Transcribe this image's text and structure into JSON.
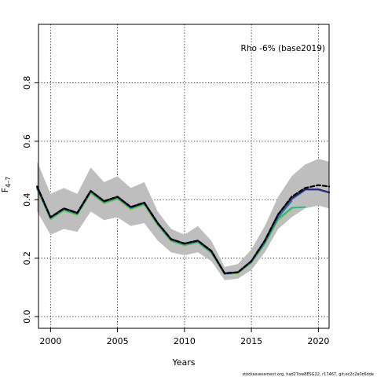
{
  "chart_data": {
    "type": "line",
    "title": "",
    "xlabel": "Years",
    "ylabel_main": "F",
    "ylabel_sub": "4–7",
    "annotation": "Rho -6% (base2019)",
    "footer": "stockassessment.org, had27ow8ESG22, r17467, git:ec2c2a0c6dde",
    "xlim": [
      1999.1,
      2020.8
    ],
    "ylim": [
      -0.04,
      1.0
    ],
    "x_ticks": [
      2000,
      2005,
      2010,
      2015,
      2020
    ],
    "x_tick_labels": [
      "2000",
      "2005",
      "2010",
      "2015",
      "2020"
    ],
    "y_ticks": [
      0.0,
      0.2,
      0.4,
      0.6,
      0.8
    ],
    "y_tick_labels": [
      "0.0",
      "0.2",
      "0.4",
      "0.6",
      "0.8"
    ],
    "grid": true,
    "band": {
      "name": "confidence interval",
      "color": "#bebebe",
      "x": [
        1999,
        2000,
        2001,
        2002,
        2003,
        2004,
        2005,
        2006,
        2007,
        2008,
        2009,
        2010,
        2011,
        2012,
        2013,
        2014,
        2015,
        2016,
        2017,
        2018,
        2019,
        2020,
        2020.8
      ],
      "upper": [
        0.53,
        0.42,
        0.44,
        0.42,
        0.51,
        0.46,
        0.48,
        0.44,
        0.46,
        0.36,
        0.3,
        0.28,
        0.31,
        0.26,
        0.17,
        0.18,
        0.23,
        0.31,
        0.41,
        0.48,
        0.52,
        0.54,
        0.53
      ],
      "lower": [
        0.36,
        0.28,
        0.3,
        0.29,
        0.36,
        0.33,
        0.34,
        0.31,
        0.32,
        0.26,
        0.22,
        0.21,
        0.22,
        0.19,
        0.125,
        0.13,
        0.16,
        0.22,
        0.3,
        0.34,
        0.37,
        0.38,
        0.37
      ]
    },
    "series": [
      {
        "color": "#000000",
        "dashed": true,
        "width": 2.2,
        "x": [
          1999,
          2000,
          2001,
          2002,
          2003,
          2004,
          2005,
          2006,
          2007,
          2008,
          2009,
          2010,
          2011,
          2012,
          2013,
          2014,
          2015,
          2016,
          2017,
          2018,
          2019,
          2020,
          2020.8
        ],
        "values": [
          0.445,
          0.34,
          0.37,
          0.355,
          0.43,
          0.395,
          0.41,
          0.375,
          0.39,
          0.32,
          0.265,
          0.25,
          0.26,
          0.225,
          0.148,
          0.152,
          0.19,
          0.26,
          0.35,
          0.41,
          0.44,
          0.45,
          0.445
        ]
      },
      {
        "color": "#2c2a6e",
        "dashed": false,
        "width": 2.4,
        "x": [
          1999,
          2000,
          2001,
          2002,
          2003,
          2004,
          2005,
          2006,
          2007,
          2008,
          2009,
          2010,
          2011,
          2012,
          2013,
          2014,
          2015,
          2016,
          2017,
          2018,
          2019,
          2020,
          2020.8
        ],
        "values": [
          0.445,
          0.34,
          0.37,
          0.355,
          0.43,
          0.395,
          0.41,
          0.375,
          0.39,
          0.32,
          0.265,
          0.25,
          0.26,
          0.225,
          0.148,
          0.152,
          0.19,
          0.26,
          0.35,
          0.405,
          0.435,
          0.435,
          0.425
        ]
      },
      {
        "color": "#4b6fc8",
        "dashed": false,
        "width": 1.6,
        "x": [
          1999,
          2000,
          2001,
          2002,
          2003,
          2004,
          2005,
          2006,
          2007,
          2008,
          2009,
          2010,
          2011,
          2012,
          2013,
          2014,
          2015,
          2016,
          2017,
          2018,
          2019
        ],
        "values": [
          0.445,
          0.34,
          0.37,
          0.355,
          0.43,
          0.395,
          0.41,
          0.375,
          0.39,
          0.32,
          0.265,
          0.25,
          0.26,
          0.225,
          0.148,
          0.152,
          0.19,
          0.258,
          0.345,
          0.4,
          0.432
        ]
      },
      {
        "color": "#1b7a7a",
        "dashed": false,
        "width": 1.8,
        "x": [
          1999,
          2000,
          2001,
          2002,
          2003,
          2004,
          2005,
          2006,
          2007,
          2008,
          2009,
          2010,
          2011,
          2012,
          2013,
          2014,
          2015,
          2016,
          2017,
          2018
        ],
        "values": [
          0.44,
          0.338,
          0.368,
          0.352,
          0.428,
          0.392,
          0.408,
          0.372,
          0.388,
          0.318,
          0.263,
          0.248,
          0.258,
          0.222,
          0.147,
          0.151,
          0.188,
          0.255,
          0.34,
          0.395
        ]
      },
      {
        "color": "#2bb58c",
        "dashed": false,
        "width": 1.8,
        "x": [
          1999,
          2000,
          2001,
          2002,
          2003,
          2004,
          2005,
          2006,
          2007,
          2008,
          2009,
          2010,
          2011,
          2012,
          2013,
          2014,
          2015,
          2016,
          2017,
          2018,
          2019
        ],
        "values": [
          0.438,
          0.335,
          0.365,
          0.35,
          0.425,
          0.39,
          0.405,
          0.37,
          0.385,
          0.315,
          0.26,
          0.245,
          0.255,
          0.22,
          0.146,
          0.15,
          0.186,
          0.25,
          0.335,
          0.372,
          0.375
        ]
      },
      {
        "color": "#8cc63f",
        "dashed": false,
        "width": 1.8,
        "x": [
          1999,
          2000,
          2001,
          2002,
          2003,
          2004,
          2005,
          2006,
          2007,
          2008,
          2009,
          2010,
          2011,
          2012,
          2013,
          2014,
          2015,
          2016,
          2017,
          2018
        ],
        "values": [
          0.435,
          0.332,
          0.362,
          0.347,
          0.422,
          0.387,
          0.402,
          0.367,
          0.382,
          0.312,
          0.258,
          0.243,
          0.253,
          0.218,
          0.145,
          0.149,
          0.184,
          0.248,
          0.33,
          0.368
        ]
      }
    ]
  }
}
